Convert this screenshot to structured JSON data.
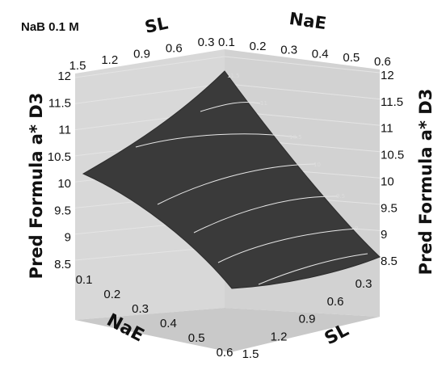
{
  "chart_data": {
    "type": "surface3d",
    "title": "NaB 0.1 M",
    "z_label": "Pred Formula a* D3",
    "x_label": "NaE",
    "y_label": "SL",
    "x_ticks": [
      "0.1",
      "0.2",
      "0.3",
      "0.4",
      "0.5",
      "0.6"
    ],
    "y_ticks": [
      "0.3",
      "0.6",
      "0.9",
      "1.2",
      "1.5"
    ],
    "z_ticks": [
      "8.5",
      "9",
      "9.5",
      "10",
      "10.5",
      "11",
      "11.5",
      "12"
    ],
    "xlim": [
      0.1,
      0.6
    ],
    "ylim": [
      0.3,
      1.5
    ],
    "zlim": [
      8.5,
      12
    ],
    "surface_corners": [
      {
        "NaE": 0.1,
        "SL": 0.3,
        "z": 11.5
      },
      {
        "NaE": 0.1,
        "SL": 1.5,
        "z": 10.2
      },
      {
        "NaE": 0.6,
        "SL": 1.5,
        "z": 8.6
      },
      {
        "NaE": 0.6,
        "SL": 0.3,
        "z": 8.5
      }
    ],
    "contours": [
      "11.5",
      "11",
      "10.5",
      "10",
      "9.5",
      "9"
    ],
    "colors": {
      "surface": "#3a3a3a",
      "walls": "#d5d5d5",
      "floor": "#c9c9c9",
      "contour": "#e6e6e6"
    }
  }
}
